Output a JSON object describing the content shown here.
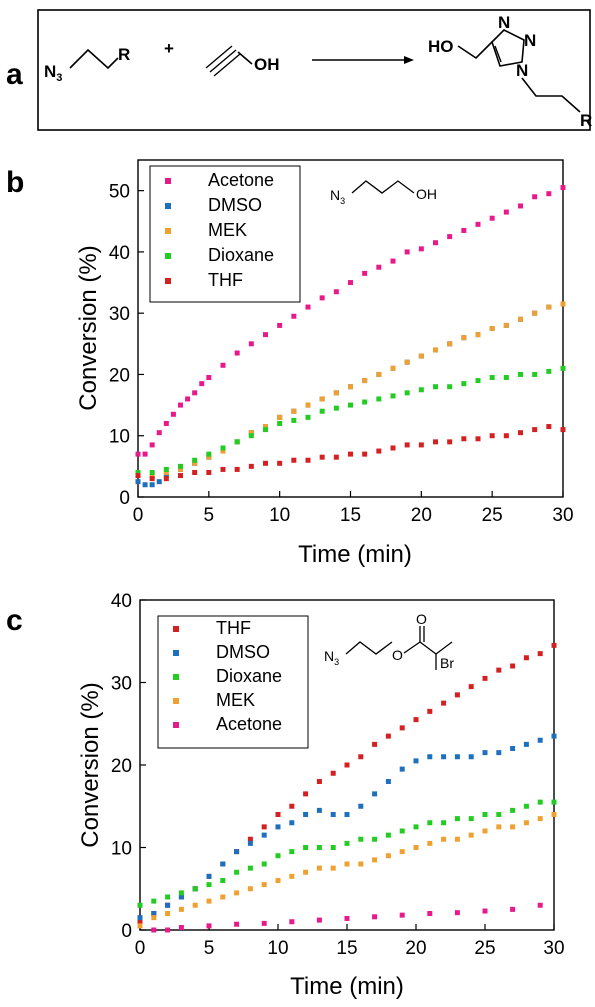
{
  "panels": {
    "a": {
      "letter": "a"
    },
    "b": {
      "letter": "b"
    },
    "c": {
      "letter": "c"
    }
  },
  "scheme": {
    "reactant1": {
      "n3": "N",
      "n3_sub": "3",
      "r": "R"
    },
    "plus": "+",
    "reactant2": {
      "oh": "OH"
    },
    "product": {
      "ho": "HO",
      "n_top": "N",
      "n_right": "N",
      "n_ring": "N",
      "r": "R"
    }
  },
  "molecules": {
    "b": {
      "n3": "N",
      "n3_sub": "3",
      "oh": "OH"
    },
    "c": {
      "n3": "N",
      "n3_sub": "3",
      "o": "O",
      "br": "Br"
    }
  },
  "colors": {
    "Acetone": "#e8198b",
    "DMSO": "#1f6fbf",
    "MEK": "#f0a030",
    "Dioxane": "#22cc22",
    "THF": "#d42020"
  },
  "chart_data": [
    {
      "type": "scatter",
      "panel": "b",
      "xlabel": "Time (min)",
      "ylabel": "Conversion (%)",
      "xlim": [
        0,
        30
      ],
      "ylim": [
        0,
        55
      ],
      "xticks": [
        0,
        5,
        10,
        15,
        20,
        25,
        30
      ],
      "yticks": [
        0,
        10,
        20,
        30,
        40,
        50
      ],
      "legend_position": "top-left",
      "series": [
        {
          "name": "Acetone",
          "x": [
            0,
            0.5,
            1,
            1.5,
            2,
            2.5,
            3,
            3.5,
            4,
            4.5,
            5,
            6,
            7,
            8,
            9,
            10,
            11,
            12,
            13,
            14,
            15,
            16,
            17,
            18,
            19,
            20,
            21,
            22,
            23,
            24,
            25,
            26,
            27,
            28,
            29,
            30
          ],
          "y": [
            7,
            7,
            8.5,
            10.5,
            12,
            13.5,
            15,
            16,
            17,
            18.5,
            19.5,
            21.5,
            23.5,
            25,
            26.5,
            28,
            29.5,
            31,
            32.5,
            33.5,
            35,
            36.5,
            37.5,
            38.5,
            40,
            40.5,
            41.5,
            42.5,
            43.5,
            44.5,
            45.5,
            46.5,
            47.5,
            49,
            49.5,
            50.5
          ]
        },
        {
          "name": "DMSO",
          "x": [
            0,
            0.5,
            1,
            1.5,
            2,
            3,
            4,
            5,
            6,
            7,
            8,
            9,
            10,
            11,
            12,
            13,
            14,
            15,
            16,
            17,
            18,
            19,
            20,
            21,
            22,
            23,
            24,
            25,
            26,
            27,
            28,
            29,
            30
          ],
          "y": [
            2.5,
            2,
            2,
            2.5,
            3.5,
            4.5,
            5.5,
            6.5,
            7.5,
            9,
            10.5,
            11.5,
            13,
            14,
            15,
            16,
            17,
            18,
            19,
            20,
            21,
            22,
            23,
            24,
            25,
            26,
            26.5,
            27.5,
            28,
            29,
            30,
            31,
            31.5
          ]
        },
        {
          "name": "MEK",
          "x": [
            0,
            1,
            2,
            3,
            4,
            5,
            6,
            7,
            8,
            9,
            10,
            11,
            12,
            13,
            14,
            15,
            16,
            17,
            18,
            19,
            20,
            21,
            22,
            23,
            24,
            25,
            26,
            27,
            28,
            29,
            30
          ],
          "y": [
            3.5,
            3.5,
            4,
            4.5,
            5.5,
            6.5,
            7.5,
            9,
            10.5,
            11.5,
            13,
            14,
            15,
            16,
            17,
            18,
            19,
            20,
            21,
            22,
            23,
            24,
            25,
            26,
            26.5,
            27.5,
            28,
            29,
            30,
            31,
            31.5
          ]
        },
        {
          "name": "Dioxane",
          "x": [
            0,
            1,
            2,
            3,
            4,
            5,
            6,
            7,
            8,
            9,
            10,
            11,
            12,
            13,
            14,
            15,
            16,
            17,
            18,
            19,
            20,
            21,
            22,
            23,
            24,
            25,
            26,
            27,
            28,
            29,
            30
          ],
          "y": [
            4,
            4,
            4.5,
            5,
            6,
            7,
            8,
            9,
            10,
            11,
            12,
            12.5,
            13,
            14,
            14.5,
            15,
            15.5,
            16,
            16.5,
            17,
            17.5,
            18,
            18,
            18.5,
            19,
            19.5,
            19.5,
            20,
            20,
            20.5,
            21
          ]
        },
        {
          "name": "THF",
          "x": [
            0,
            1,
            2,
            3,
            4,
            5,
            6,
            7,
            8,
            9,
            10,
            11,
            12,
            13,
            14,
            15,
            16,
            17,
            18,
            19,
            20,
            21,
            22,
            23,
            24,
            25,
            26,
            27,
            28,
            29,
            30
          ],
          "y": [
            3.5,
            3,
            3,
            3.5,
            4,
            4,
            4.5,
            4.5,
            5,
            5.5,
            5.5,
            6,
            6,
            6.5,
            6.5,
            7,
            7,
            7.5,
            8,
            8.5,
            8.5,
            9,
            9,
            9.5,
            9.5,
            10,
            10,
            10.5,
            11,
            11.5,
            11
          ]
        }
      ]
    },
    {
      "type": "scatter",
      "panel": "c",
      "xlabel": "Time (min)",
      "ylabel": "Conversion (%)",
      "xlim": [
        0,
        30
      ],
      "ylim": [
        0,
        40
      ],
      "xticks": [
        0,
        5,
        10,
        15,
        20,
        25,
        30
      ],
      "yticks": [
        0,
        10,
        20,
        30,
        40
      ],
      "legend_position": "top-left",
      "series": [
        {
          "name": "THF",
          "x": [
            0,
            1,
            2,
            3,
            4,
            5,
            6,
            7,
            8,
            9,
            10,
            11,
            12,
            13,
            14,
            15,
            16,
            17,
            18,
            19,
            20,
            21,
            22,
            23,
            24,
            25,
            26,
            27,
            28,
            29,
            30
          ],
          "y": [
            1,
            2,
            3,
            4,
            5,
            6.5,
            8,
            9.5,
            11,
            12.5,
            14,
            15,
            16.5,
            18,
            19,
            20,
            21,
            22.5,
            23.5,
            24.5,
            25.5,
            26.5,
            27.5,
            28.5,
            29.5,
            30.5,
            31.5,
            32,
            33,
            33.5,
            34.5
          ]
        },
        {
          "name": "DMSO",
          "x": [
            0,
            1,
            2,
            3,
            4,
            5,
            6,
            7,
            8,
            9,
            10,
            11,
            12,
            13,
            14,
            15,
            16,
            17,
            18,
            19,
            20,
            21,
            22,
            23,
            24,
            25,
            26,
            27,
            28,
            29,
            30
          ],
          "y": [
            1.5,
            2,
            3,
            4,
            5,
            6.5,
            8,
            9.5,
            10.5,
            11.5,
            12.5,
            13,
            14,
            14.5,
            14,
            14,
            15,
            16.5,
            18,
            19.5,
            20.5,
            21,
            21,
            21,
            21,
            21.5,
            21.5,
            22,
            22.5,
            23,
            23.5
          ]
        },
        {
          "name": "Dioxane",
          "x": [
            0,
            1,
            2,
            3,
            4,
            5,
            6,
            7,
            8,
            9,
            10,
            11,
            12,
            13,
            14,
            15,
            16,
            17,
            18,
            19,
            20,
            21,
            22,
            23,
            24,
            25,
            26,
            27,
            28,
            29,
            30
          ],
          "y": [
            3,
            3.5,
            4,
            4.5,
            5,
            5.5,
            6,
            7,
            7.5,
            8,
            9,
            9.5,
            10,
            10,
            10,
            10.5,
            11,
            11,
            11.5,
            12,
            12.5,
            13,
            13,
            13.5,
            13.5,
            14,
            14,
            14.5,
            15,
            15.5,
            15.5
          ]
        },
        {
          "name": "MEK",
          "x": [
            0,
            1,
            2,
            3,
            4,
            5,
            6,
            7,
            8,
            9,
            10,
            11,
            12,
            13,
            14,
            15,
            16,
            17,
            18,
            19,
            20,
            21,
            22,
            23,
            24,
            25,
            26,
            27,
            28,
            29,
            30
          ],
          "y": [
            0.5,
            1.5,
            2,
            2.5,
            3,
            3.5,
            4,
            4.5,
            5,
            5.5,
            6,
            6.5,
            7,
            7.5,
            7.5,
            8,
            8,
            8.5,
            9,
            9.5,
            10,
            10.5,
            11,
            11,
            11.5,
            12,
            12.5,
            12.5,
            13,
            13.5,
            14
          ]
        },
        {
          "name": "Acetone",
          "x": [
            1,
            2,
            3,
            5,
            7,
            9,
            11,
            13,
            15,
            17,
            19,
            21,
            23,
            25,
            27,
            29
          ],
          "y": [
            0,
            0,
            0.3,
            0.5,
            0.7,
            0.8,
            1,
            1.2,
            1.4,
            1.6,
            1.8,
            2,
            2.1,
            2.3,
            2.5,
            3
          ]
        }
      ]
    }
  ]
}
